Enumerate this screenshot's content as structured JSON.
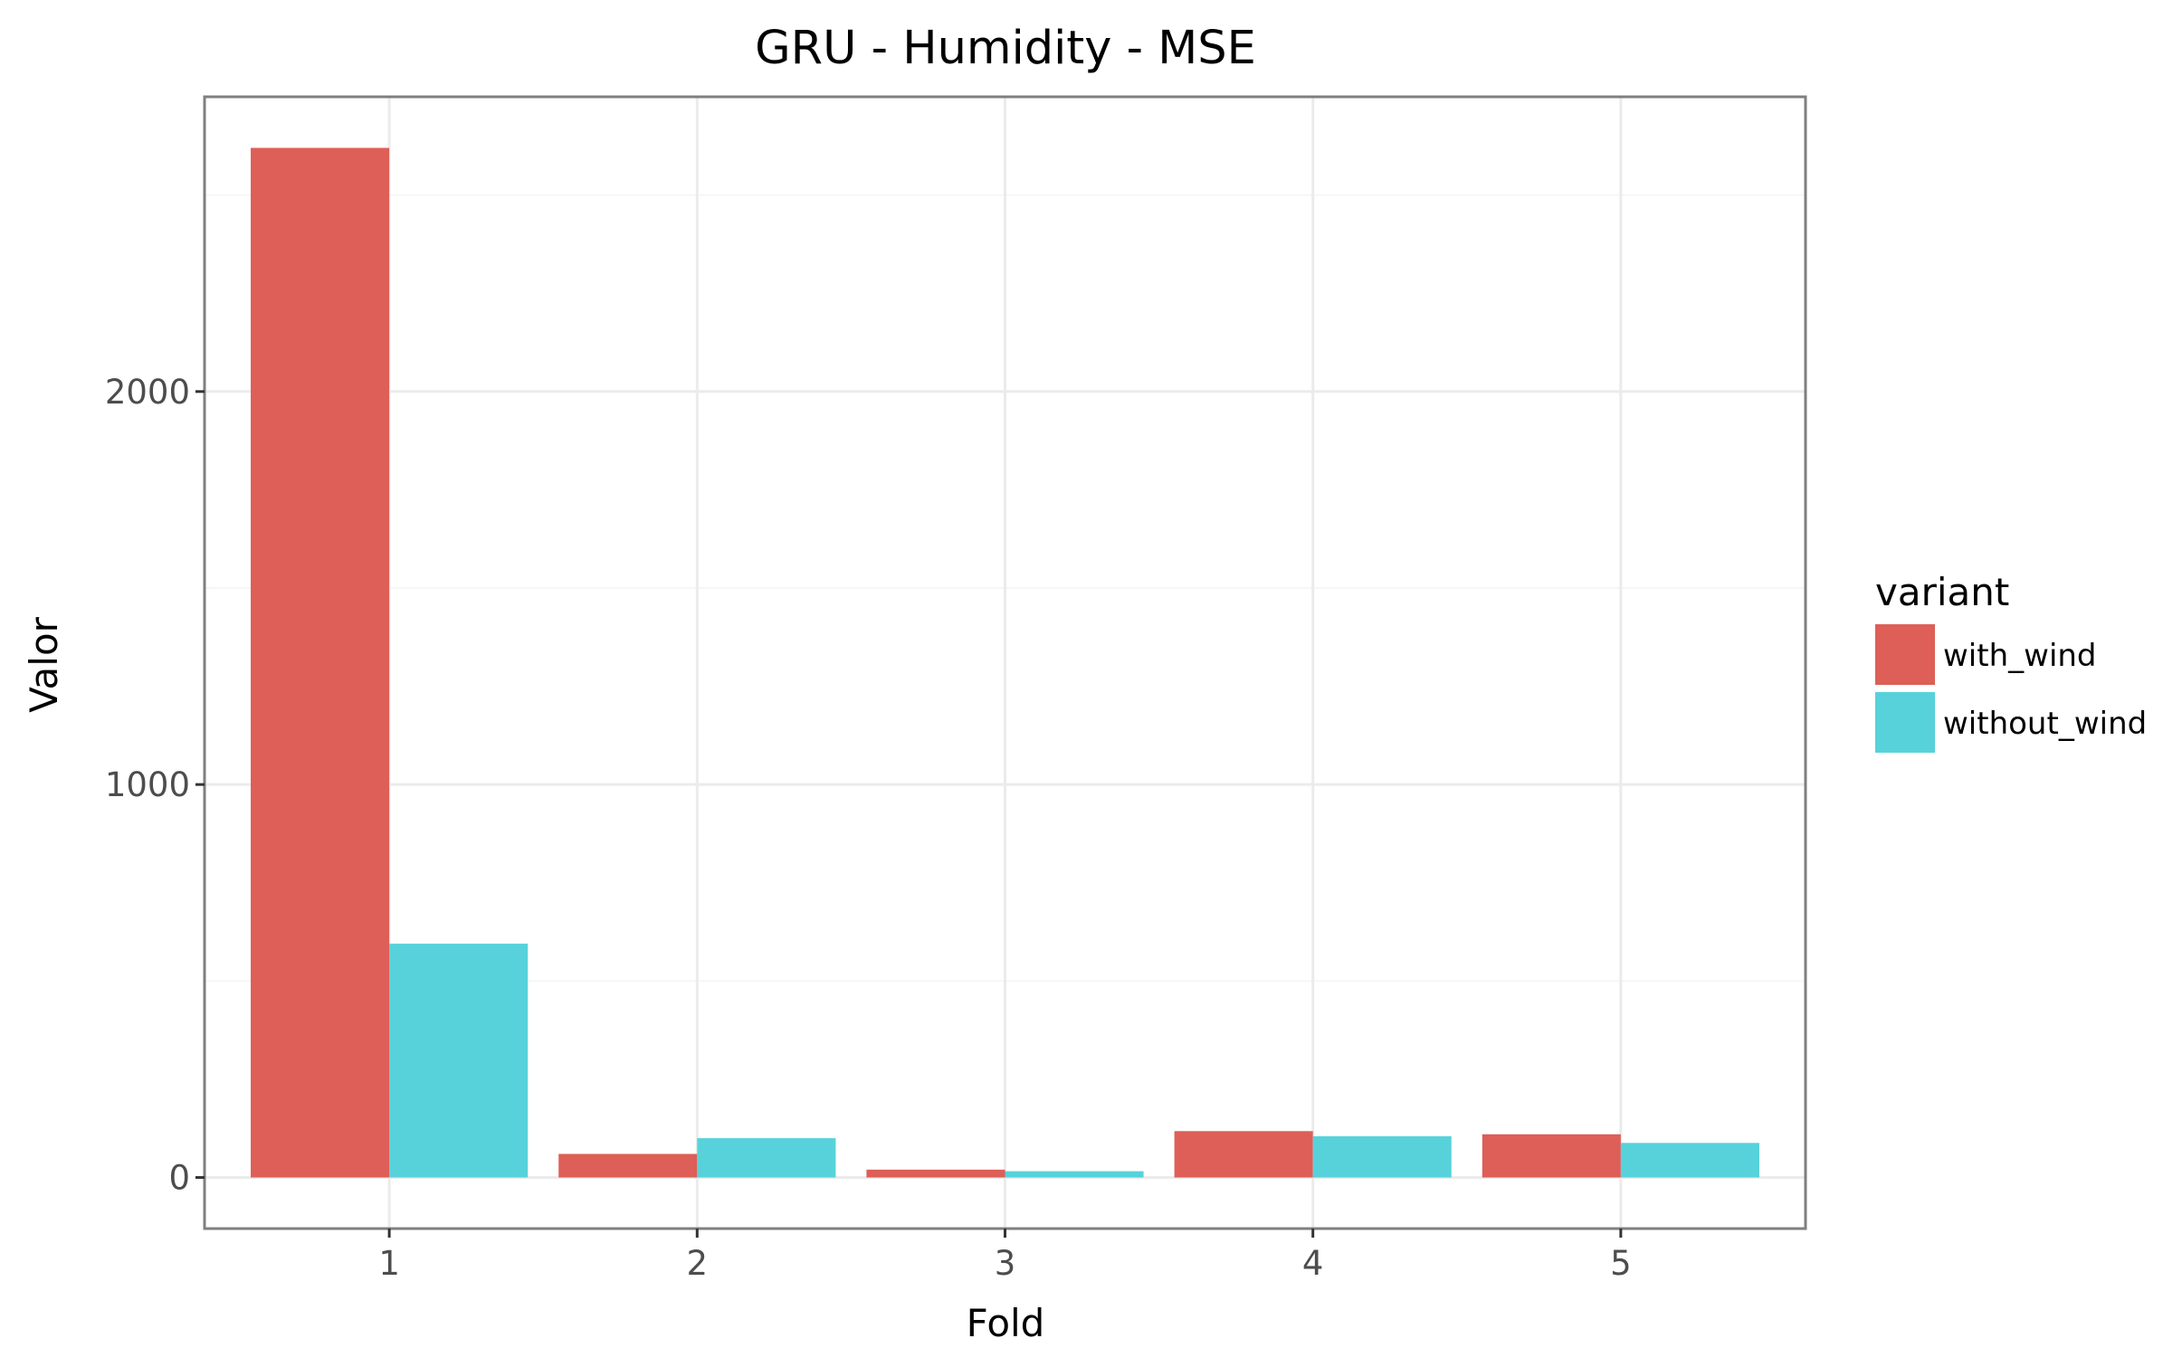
{
  "chart_data": {
    "type": "bar",
    "title": "GRU - Humidity - MSE",
    "xlabel": "Fold",
    "ylabel": "Valor",
    "categories": [
      "1",
      "2",
      "3",
      "4",
      "5"
    ],
    "series": [
      {
        "name": "with_wind",
        "color": "#dd5f57",
        "values": [
          2620,
          60,
          20,
          118,
          110
        ]
      },
      {
        "name": "without_wind",
        "color": "#57d2db",
        "values": [
          595,
          100,
          16,
          105,
          88
        ]
      }
    ],
    "yticks": [
      0,
      1000,
      2000
    ],
    "ytick_labels": [
      "0",
      "1000",
      "2000"
    ],
    "ylim": [
      -130,
      2750
    ],
    "grid": true,
    "legend": {
      "title": "variant",
      "position": "right"
    },
    "panel_border_color": "#7f7f7f",
    "grid_color": "#ebebeb"
  }
}
